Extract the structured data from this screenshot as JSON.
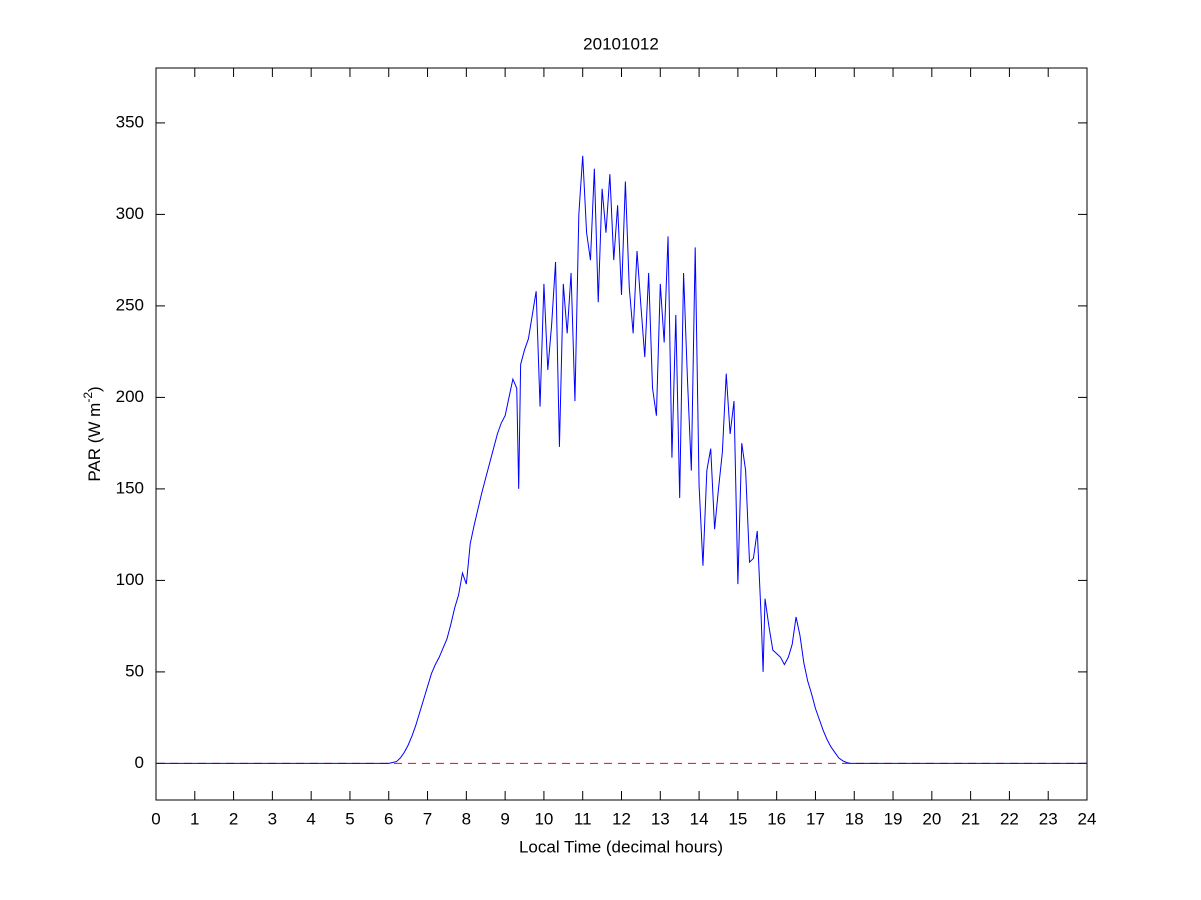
{
  "chart_data": {
    "type": "line",
    "title": "20101012",
    "x_label": "Local Time (decimal hours)",
    "y_label": {
      "text": "PAR (W m",
      "sup": "-2",
      "end": ")"
    },
    "x": [
      0,
      6.0,
      6.1,
      6.2,
      6.3,
      6.4,
      6.5,
      6.6,
      6.7,
      6.8,
      6.9,
      7.0,
      7.1,
      7.2,
      7.3,
      7.4,
      7.5,
      7.6,
      7.7,
      7.8,
      7.9,
      8.0,
      8.1,
      8.2,
      8.3,
      8.4,
      8.5,
      8.6,
      8.7,
      8.8,
      8.9,
      9.0,
      9.1,
      9.2,
      9.3,
      9.35,
      9.4,
      9.5,
      9.6,
      9.7,
      9.8,
      9.9,
      10.0,
      10.1,
      10.2,
      10.3,
      10.4,
      10.5,
      10.6,
      10.7,
      10.8,
      10.9,
      11.0,
      11.1,
      11.2,
      11.3,
      11.4,
      11.5,
      11.6,
      11.7,
      11.8,
      11.9,
      12.0,
      12.1,
      12.2,
      12.3,
      12.4,
      12.5,
      12.6,
      12.7,
      12.8,
      12.9,
      13.0,
      13.1,
      13.2,
      13.3,
      13.4,
      13.5,
      13.6,
      13.7,
      13.8,
      13.9,
      14.0,
      14.1,
      14.2,
      14.3,
      14.4,
      14.5,
      14.6,
      14.7,
      14.8,
      14.9,
      15.0,
      15.1,
      15.2,
      15.3,
      15.4,
      15.5,
      15.6,
      15.65,
      15.7,
      15.8,
      15.9,
      16.0,
      16.1,
      16.2,
      16.3,
      16.4,
      16.5,
      16.6,
      16.7,
      16.8,
      16.9,
      17.0,
      17.1,
      17.2,
      17.3,
      17.4,
      17.5,
      17.6,
      17.7,
      17.8,
      17.9,
      24
    ],
    "series": [
      {
        "color": "#0000ff",
        "values": [
          0,
          0,
          0.5,
          1,
          3,
          6,
          10,
          15,
          21,
          28,
          35,
          42,
          49,
          54,
          58,
          63,
          68,
          76,
          85,
          92,
          104,
          98,
          120,
          130,
          139,
          148,
          156,
          164,
          172,
          180,
          186,
          190,
          200,
          210,
          205,
          150,
          218,
          226,
          232,
          245,
          258,
          195,
          262,
          215,
          240,
          274,
          173,
          262,
          235,
          268,
          198,
          300,
          332,
          290,
          275,
          325,
          252,
          314,
          290,
          322,
          275,
          305,
          256,
          318,
          260,
          235,
          280,
          250,
          222,
          268,
          205,
          190,
          262,
          230,
          288,
          167,
          245,
          145,
          268,
          210,
          160,
          282,
          152,
          108,
          160,
          172,
          128,
          150,
          170,
          213,
          180,
          198,
          98,
          175,
          160,
          110,
          112,
          127,
          80,
          50,
          90,
          75,
          62,
          60,
          58,
          54,
          58,
          65,
          80,
          70,
          55,
          45,
          38,
          30,
          24,
          18,
          13,
          9,
          6,
          3,
          1.5,
          0.5,
          0,
          0
        ]
      }
    ],
    "reference_line": {
      "value": 0,
      "color": "#ff0000",
      "style": "dashed"
    },
    "xlim": [
      0,
      24
    ],
    "xticks": [
      0,
      1,
      2,
      3,
      4,
      5,
      6,
      7,
      8,
      9,
      10,
      11,
      12,
      13,
      14,
      15,
      16,
      17,
      18,
      19,
      20,
      21,
      22,
      23,
      24
    ],
    "ylim": [
      -20,
      380
    ],
    "yticks": [
      0,
      50,
      100,
      150,
      200,
      250,
      300,
      350
    ],
    "grid": false
  }
}
